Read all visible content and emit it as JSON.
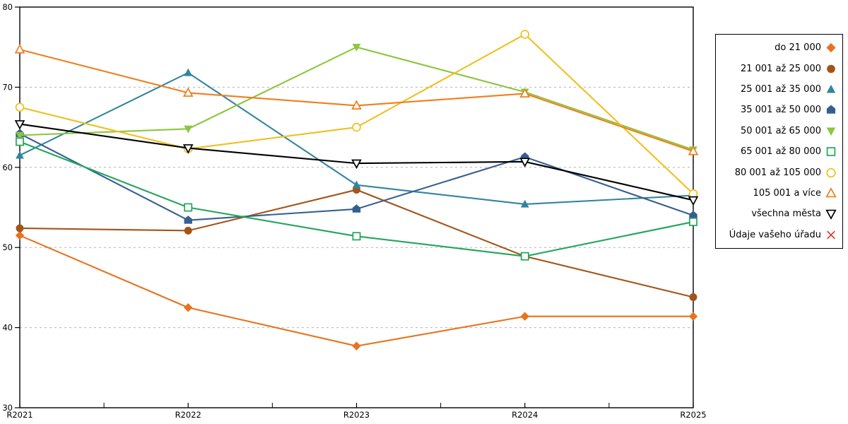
{
  "chart_data": {
    "type": "line",
    "title": "",
    "xlabel": "",
    "ylabel": "",
    "categories": [
      "R2021",
      "R2022",
      "R2023",
      "R2024",
      "R2025"
    ],
    "ylim": [
      30,
      80
    ],
    "yticks": [
      30,
      40,
      50,
      60,
      70,
      80
    ],
    "grid": "horizontal-dashed",
    "x_minor_ticks": true,
    "legend_position": "right-outside",
    "plot_border": "full-box",
    "series": [
      {
        "name": "do 21 000",
        "color": "#E8731E",
        "marker": "diamond",
        "open": false,
        "values": [
          51.5,
          42.5,
          37.7,
          41.4,
          41.4
        ]
      },
      {
        "name": "21 001 až 25 000",
        "color": "#A35419",
        "marker": "circle",
        "open": false,
        "values": [
          52.4,
          52.1,
          57.2,
          48.9,
          43.8
        ]
      },
      {
        "name": "25 001 až 35 000",
        "color": "#31859C",
        "marker": "triangle-up",
        "open": false,
        "values": [
          61.5,
          71.8,
          57.8,
          55.4,
          56.5
        ]
      },
      {
        "name": "35 001 až 50 000",
        "color": "#365F91",
        "marker": "pentagon",
        "open": false,
        "values": [
          64.2,
          53.4,
          54.8,
          61.3,
          54.0
        ]
      },
      {
        "name": "50 001 až 65 000",
        "color": "#8DC63F",
        "marker": "triangle-down",
        "open": false,
        "values": [
          64.0,
          64.8,
          75.0,
          69.4,
          62.2
        ]
      },
      {
        "name": "65 001 až 80 000",
        "color": "#21A65B",
        "marker": "square",
        "open": true,
        "values": [
          63.2,
          55.0,
          51.4,
          48.9,
          53.2
        ]
      },
      {
        "name": "80 001 až 105 000",
        "color": "#F0C020",
        "marker": "circle",
        "open": true,
        "values": [
          67.5,
          62.3,
          65.0,
          76.6,
          56.7
        ]
      },
      {
        "name": "105 001 a více",
        "color": "#F07E1E",
        "marker": "triangle-up",
        "open": true,
        "values": [
          74.7,
          69.3,
          67.7,
          69.2,
          62.0
        ]
      },
      {
        "name": "všechna města",
        "color": "#000000",
        "marker": "triangle-down",
        "open": true,
        "values": [
          65.4,
          62.4,
          60.5,
          60.7,
          55.9
        ]
      },
      {
        "name": "Údaje vašeho úřadu",
        "color": "#E0301E",
        "marker": "x",
        "open": true,
        "values": []
      }
    ],
    "colors": {
      "gridline": "#B3B3B3",
      "axis": "#000000",
      "background": "#FFFFFF"
    }
  }
}
